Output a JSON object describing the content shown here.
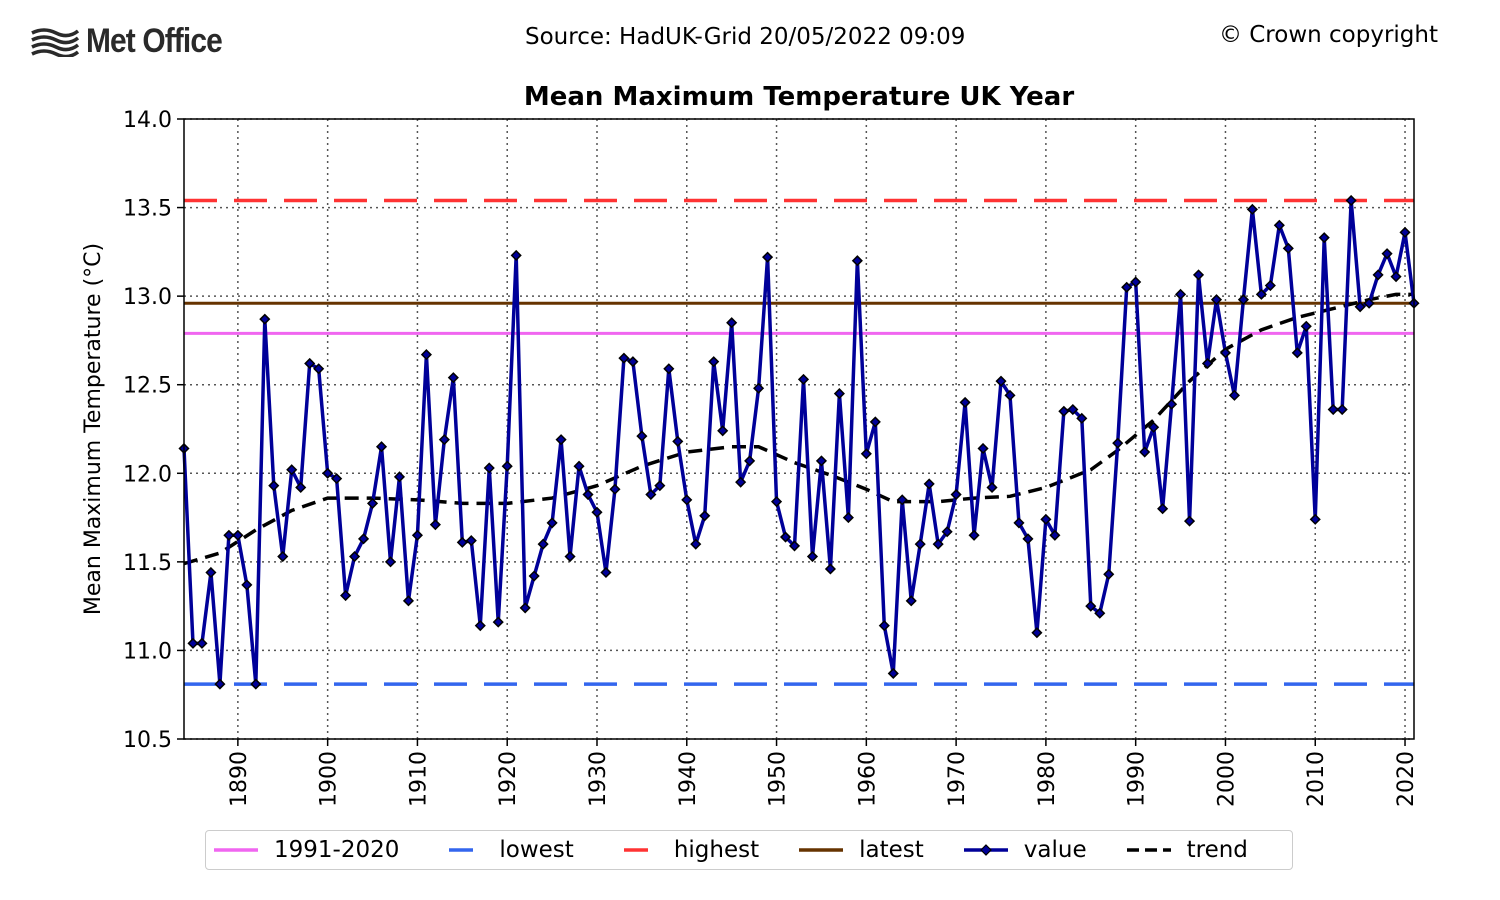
{
  "header": {
    "brand": "Met Office",
    "source": "Source: HadUK-Grid 20/05/2022 09:09",
    "copyright": "© Crown copyright"
  },
  "colors": {
    "average": "#f066f0",
    "lowest": "#3366ee",
    "highest": "#ff3333",
    "latest": "#663300",
    "value": "#000099",
    "trend": "#000000",
    "grid": "#555555"
  },
  "legend": [
    {
      "key": "average",
      "label": "1991-2020",
      "style": "solid"
    },
    {
      "key": "lowest",
      "label": "lowest",
      "style": "dashed"
    },
    {
      "key": "highest",
      "label": "highest",
      "style": "dashed"
    },
    {
      "key": "latest",
      "label": "latest",
      "style": "solid"
    },
    {
      "key": "value",
      "label": "value",
      "style": "marker"
    },
    {
      "key": "trend",
      "label": "trend",
      "style": "dashed"
    }
  ],
  "chart_data": {
    "type": "line",
    "title": "Mean Maximum Temperature UK Year",
    "xlabel": "",
    "ylabel": "Mean Maximum Temperature (°C)",
    "xlim": [
      1884,
      2021
    ],
    "ylim": [
      10.5,
      14.0
    ],
    "xticks": [
      1890,
      1900,
      1910,
      1920,
      1930,
      1940,
      1950,
      1960,
      1970,
      1980,
      1990,
      2000,
      2010,
      2020
    ],
    "yticks": [
      10.5,
      11.0,
      11.5,
      12.0,
      12.5,
      13.0,
      13.5,
      14.0
    ],
    "ytick_labels": [
      "10.5",
      "11.0",
      "11.5",
      "12.0",
      "12.5",
      "13.0",
      "13.5",
      "14.0"
    ],
    "grid": true,
    "legend_position": "bottom",
    "reference_lines": {
      "average": 12.79,
      "lowest": 10.81,
      "highest": 13.54,
      "latest": 12.96
    },
    "x": [
      1884,
      1885,
      1886,
      1887,
      1888,
      1889,
      1890,
      1891,
      1892,
      1893,
      1894,
      1895,
      1896,
      1897,
      1898,
      1899,
      1900,
      1901,
      1902,
      1903,
      1904,
      1905,
      1906,
      1907,
      1908,
      1909,
      1910,
      1911,
      1912,
      1913,
      1914,
      1915,
      1916,
      1917,
      1918,
      1919,
      1920,
      1921,
      1922,
      1923,
      1924,
      1925,
      1926,
      1927,
      1928,
      1929,
      1930,
      1931,
      1932,
      1933,
      1934,
      1935,
      1936,
      1937,
      1938,
      1939,
      1940,
      1941,
      1942,
      1943,
      1944,
      1945,
      1946,
      1947,
      1948,
      1949,
      1950,
      1951,
      1952,
      1953,
      1954,
      1955,
      1956,
      1957,
      1958,
      1959,
      1960,
      1961,
      1962,
      1963,
      1964,
      1965,
      1966,
      1967,
      1968,
      1969,
      1970,
      1971,
      1972,
      1973,
      1974,
      1975,
      1976,
      1977,
      1978,
      1979,
      1980,
      1981,
      1982,
      1983,
      1984,
      1985,
      1986,
      1987,
      1988,
      1989,
      1990,
      1991,
      1992,
      1993,
      1994,
      1995,
      1996,
      1997,
      1998,
      1999,
      2000,
      2001,
      2002,
      2003,
      2004,
      2005,
      2006,
      2007,
      2008,
      2009,
      2010,
      2011,
      2012,
      2013,
      2014,
      2015,
      2016,
      2017,
      2018,
      2019,
      2020,
      2021
    ],
    "series": [
      {
        "name": "value",
        "values": [
          12.14,
          11.04,
          11.04,
          11.44,
          10.81,
          11.65,
          11.65,
          11.37,
          10.81,
          12.87,
          11.93,
          11.53,
          12.02,
          11.92,
          12.62,
          12.59,
          12.0,
          11.97,
          11.31,
          11.53,
          11.63,
          11.83,
          12.15,
          11.5,
          11.98,
          11.28,
          11.65,
          12.67,
          11.71,
          12.19,
          12.54,
          11.61,
          11.62,
          11.14,
          12.03,
          11.16,
          12.04,
          13.23,
          11.24,
          11.42,
          11.6,
          11.72,
          12.19,
          11.53,
          12.04,
          11.88,
          11.78,
          11.44,
          11.91,
          12.65,
          12.63,
          12.21,
          11.88,
          11.93,
          12.59,
          12.18,
          11.85,
          11.6,
          11.76,
          12.63,
          12.24,
          12.85,
          11.95,
          12.07,
          12.48,
          13.22,
          11.84,
          11.64,
          11.59,
          12.53,
          11.53,
          12.07,
          11.46,
          12.45,
          11.75,
          13.2,
          12.11,
          12.29,
          11.14,
          10.87,
          11.85,
          11.28,
          11.6,
          11.94,
          11.6,
          11.67,
          11.88,
          12.4,
          11.65,
          12.14,
          11.92,
          12.52,
          12.44,
          11.72,
          11.63,
          11.1,
          11.74,
          11.65,
          12.35,
          12.36,
          12.31,
          11.25,
          11.21,
          11.43,
          12.17,
          13.05,
          13.08,
          12.12,
          12.26,
          11.8,
          12.39,
          13.01,
          11.73,
          13.12,
          12.62,
          12.98,
          12.68,
          12.44,
          12.98,
          13.49,
          13.01,
          13.06,
          13.4,
          13.27,
          12.68,
          12.83,
          11.74,
          13.33,
          12.36,
          12.36,
          13.54,
          12.94,
          12.96,
          13.12,
          13.24,
          13.11,
          13.36,
          12.96
        ]
      },
      {
        "name": "trend",
        "x": [
          1884,
          1888,
          1892,
          1896,
          1900,
          1905,
          1910,
          1915,
          1920,
          1925,
          1930,
          1935,
          1940,
          1945,
          1948,
          1952,
          1956,
          1960,
          1963,
          1968,
          1972,
          1976,
          1980,
          1985,
          1988,
          1992,
          1996,
          2000,
          2004,
          2008,
          2012,
          2016,
          2019,
          2021
        ],
        "values": [
          11.49,
          11.55,
          11.68,
          11.79,
          11.86,
          11.86,
          11.85,
          11.83,
          11.83,
          11.86,
          11.93,
          12.04,
          12.12,
          12.15,
          12.15,
          12.06,
          11.99,
          11.91,
          11.84,
          11.84,
          11.86,
          11.87,
          11.92,
          12.02,
          12.13,
          12.3,
          12.52,
          12.7,
          12.81,
          12.88,
          12.93,
          12.98,
          13.01,
          13.01
        ]
      }
    ]
  }
}
